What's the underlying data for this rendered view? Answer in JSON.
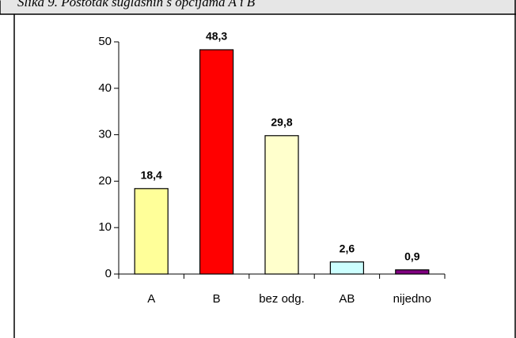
{
  "chart_data": {
    "type": "bar",
    "title": "Slika 9. Postotak suglasnih s opcijama A i B",
    "categories": [
      "A",
      "B",
      "bez odg.",
      "AB",
      "nijedno"
    ],
    "values": [
      18.4,
      48.3,
      29.8,
      2.6,
      0.9
    ],
    "value_labels": [
      "18,4",
      "48,3",
      "29,8",
      "2,6",
      "0,9"
    ],
    "colors": [
      "#ffff99",
      "#ff0000",
      "#ffffcc",
      "#ccffff",
      "#800080"
    ],
    "ylim": [
      0,
      50
    ],
    "yticks": [
      0,
      10,
      20,
      30,
      40,
      50
    ],
    "grid": false
  }
}
